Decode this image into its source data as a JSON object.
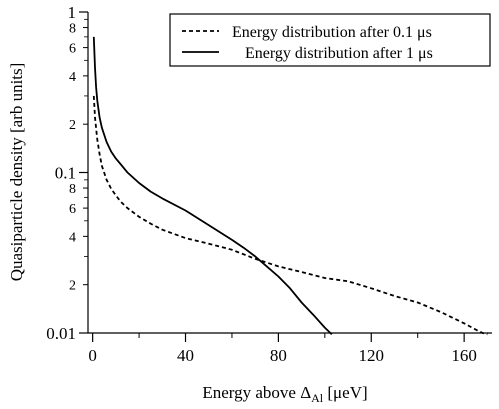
{
  "chart_data": {
    "type": "line",
    "xlabel_main": "Energy above Δ",
    "xlabel_sub": "Al",
    "xlabel_unit": " [μeV]",
    "ylabel": "Quasiparticle density [arb units]",
    "xlim": [
      -2,
      172
    ],
    "ylim": [
      0.01,
      1
    ],
    "yscale": "log",
    "x_ticks": [
      0,
      40,
      80,
      120,
      160
    ],
    "y_major_ticks": [
      0.01,
      0.1,
      1
    ],
    "y_major_labels": [
      "0.01",
      "0.1",
      "1"
    ],
    "y_minor_ticks": [
      0.02,
      0.04,
      0.06,
      0.08,
      0.2,
      0.4,
      0.6,
      0.8
    ],
    "y_minor_labels": [
      "2",
      "4",
      "6",
      "8",
      "2",
      "4",
      "6",
      "8"
    ],
    "legend_position": "top-right",
    "series": [
      {
        "name": "Energy distribution after 0.1 μs",
        "style": "dashed",
        "x": [
          0.5,
          1,
          2,
          3,
          4,
          6,
          8,
          10,
          12,
          15,
          20,
          25,
          30,
          40,
          50,
          60,
          70,
          80,
          90,
          100,
          110,
          120,
          130,
          140,
          150,
          160,
          165,
          168,
          170
        ],
        "y": [
          0.3,
          0.22,
          0.16,
          0.13,
          0.11,
          0.09,
          0.079,
          0.072,
          0.066,
          0.06,
          0.053,
          0.048,
          0.044,
          0.039,
          0.036,
          0.033,
          0.029,
          0.026,
          0.024,
          0.022,
          0.021,
          0.019,
          0.017,
          0.0155,
          0.0135,
          0.0115,
          0.0105,
          0.01,
          0.0098
        ]
      },
      {
        "name": "Energy distribution after 1 μs",
        "style": "solid",
        "x": [
          0.5,
          1,
          1.5,
          2,
          3,
          4,
          6,
          8,
          10,
          12,
          15,
          20,
          25,
          30,
          40,
          50,
          60,
          65,
          70,
          75,
          80,
          85,
          90,
          95,
          100,
          103
        ],
        "y": [
          0.7,
          0.45,
          0.34,
          0.28,
          0.22,
          0.19,
          0.155,
          0.135,
          0.122,
          0.113,
          0.1,
          0.086,
          0.076,
          0.069,
          0.058,
          0.047,
          0.038,
          0.034,
          0.03,
          0.026,
          0.0225,
          0.019,
          0.0155,
          0.013,
          0.0108,
          0.0098
        ]
      }
    ]
  }
}
